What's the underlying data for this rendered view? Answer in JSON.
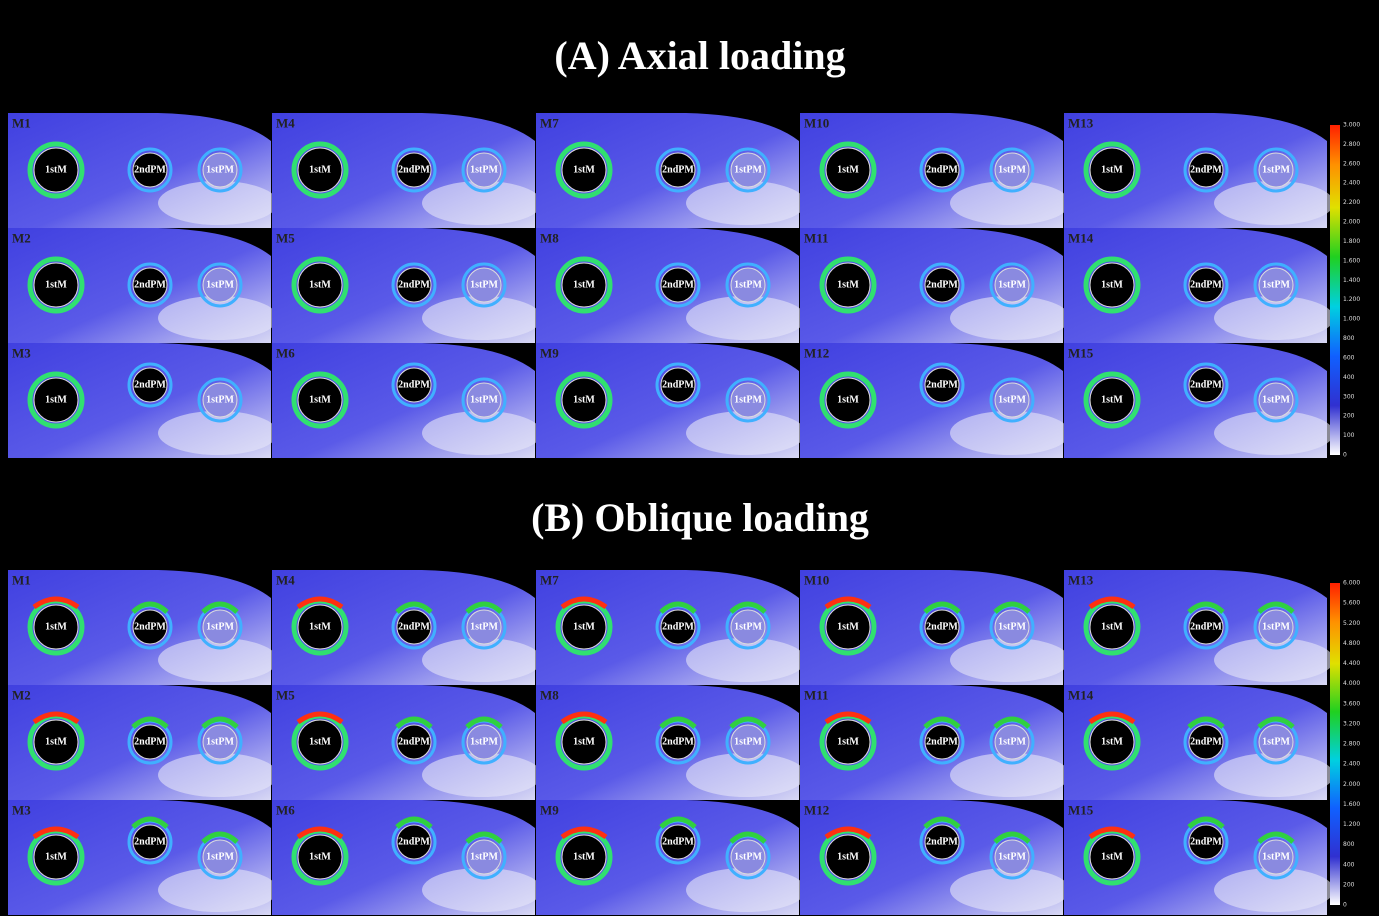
{
  "sections": [
    {
      "title": "(A) Axial loading",
      "panels": [
        {
          "label": "M1",
          "implants": [
            "1stM",
            "2ndPM",
            "1stPM"
          ]
        },
        {
          "label": "M2",
          "implants": [
            "1stM",
            "2ndPM",
            "1stPM"
          ]
        },
        {
          "label": "M3",
          "implants": [
            "1stM",
            "2ndPM",
            "1stPM"
          ]
        },
        {
          "label": "M4",
          "implants": [
            "1stM",
            "2ndPM",
            "1stPM"
          ]
        },
        {
          "label": "M5",
          "implants": [
            "1stM",
            "2ndPM",
            "1stPM"
          ]
        },
        {
          "label": "M6",
          "implants": [
            "1stM",
            "2ndPM",
            "1stPM"
          ]
        },
        {
          "label": "M7",
          "implants": [
            "1stM",
            "2ndPM",
            "1stPM"
          ]
        },
        {
          "label": "M8",
          "implants": [
            "1stM",
            "2ndPM",
            "1stPM"
          ]
        },
        {
          "label": "M9",
          "implants": [
            "1stM",
            "2ndPM",
            "1stPM"
          ]
        },
        {
          "label": "M10",
          "implants": [
            "1stM",
            "2ndPM",
            "1stPM"
          ]
        },
        {
          "label": "M11",
          "implants": [
            "1stM",
            "2ndPM",
            "1stPM"
          ]
        },
        {
          "label": "M12",
          "implants": [
            "1stM",
            "2ndPM",
            "1stPM"
          ]
        },
        {
          "label": "M13",
          "implants": [
            "1stM",
            "2ndPM",
            "1stPM"
          ]
        },
        {
          "label": "M14",
          "implants": [
            "1stM",
            "2ndPM",
            "1stPM"
          ]
        },
        {
          "label": "M15",
          "implants": [
            "1stM",
            "2ndPM",
            "1stPM"
          ]
        }
      ],
      "scale": [
        "3.000",
        "2.800",
        "2.600",
        "2.400",
        "2.200",
        "2.000",
        "1.800",
        "1.600",
        "1.400",
        "1.200",
        "1.000",
        "800",
        "600",
        "400",
        "300",
        "200",
        "100",
        "0"
      ]
    },
    {
      "title": "(B) Oblique loading",
      "panels": [
        {
          "label": "M1",
          "implants": [
            "1stM",
            "2ndPM",
            "1stPM"
          ]
        },
        {
          "label": "M2",
          "implants": [
            "1stM",
            "2ndPM",
            "1stPM"
          ]
        },
        {
          "label": "M3",
          "implants": [
            "1stM",
            "2ndPM",
            "1stPM"
          ]
        },
        {
          "label": "M4",
          "implants": [
            "1stM",
            "2ndPM",
            "1stPM"
          ]
        },
        {
          "label": "M5",
          "implants": [
            "1stM",
            "2ndPM",
            "1stPM"
          ]
        },
        {
          "label": "M6",
          "implants": [
            "1stM",
            "2ndPM",
            "1stPM"
          ]
        },
        {
          "label": "M7",
          "implants": [
            "1stM",
            "2ndPM",
            "1stPM"
          ]
        },
        {
          "label": "M8",
          "implants": [
            "1stM",
            "2ndPM",
            "1stPM"
          ]
        },
        {
          "label": "M9",
          "implants": [
            "1stM",
            "2ndPM",
            "1stPM"
          ]
        },
        {
          "label": "M10",
          "implants": [
            "1stM",
            "2ndPM",
            "1stPM"
          ]
        },
        {
          "label": "M11",
          "implants": [
            "1stM",
            "2ndPM",
            "1stPM"
          ]
        },
        {
          "label": "M12",
          "implants": [
            "1stM",
            "2ndPM",
            "1stPM"
          ]
        },
        {
          "label": "M13",
          "implants": [
            "1stM",
            "2ndPM",
            "1stPM"
          ]
        },
        {
          "label": "M14",
          "implants": [
            "1stM",
            "2ndPM",
            "1stPM"
          ]
        },
        {
          "label": "M15",
          "implants": [
            "1stM",
            "2ndPM",
            "1stPM"
          ]
        }
      ],
      "scale": [
        "6.000",
        "5.600",
        "5.200",
        "4.800",
        "4.400",
        "4.000",
        "3.600",
        "3.200",
        "2.800",
        "2.400",
        "2.000",
        "1.600",
        "1.200",
        "800",
        "400",
        "200",
        "0"
      ]
    }
  ]
}
